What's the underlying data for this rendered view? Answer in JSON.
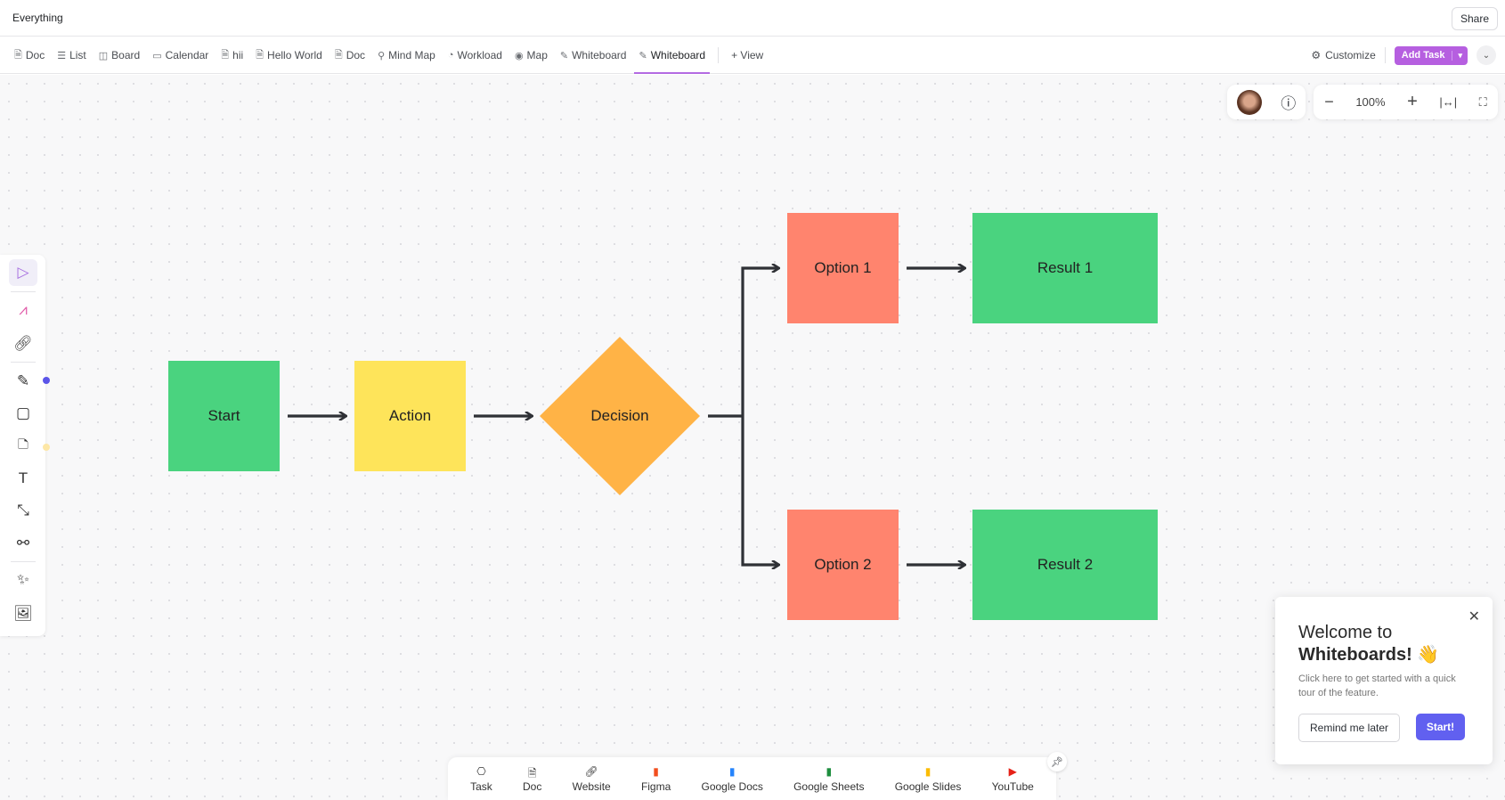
{
  "header": {
    "title": "Everything",
    "share_label": "Share"
  },
  "tabs": [
    {
      "label": "Doc",
      "icon": "doc-icon"
    },
    {
      "label": "List",
      "icon": "list-icon"
    },
    {
      "label": "Board",
      "icon": "board-icon"
    },
    {
      "label": "Calendar",
      "icon": "calendar-icon"
    },
    {
      "label": "hii",
      "icon": "doc-icon"
    },
    {
      "label": "Hello World",
      "icon": "doc-icon"
    },
    {
      "label": "Doc",
      "icon": "doc-icon"
    },
    {
      "label": "Mind Map",
      "icon": "mindmap-icon"
    },
    {
      "label": "Workload",
      "icon": "gauge-icon"
    },
    {
      "label": "Map",
      "icon": "map-pin-icon"
    },
    {
      "label": "Whiteboard",
      "icon": "whiteboard-icon"
    },
    {
      "label": "Whiteboard",
      "icon": "whiteboard-icon",
      "active": true
    }
  ],
  "add_view_label": "+ View",
  "customize_label": "Customize",
  "add_task_label": "Add Task",
  "zoom": {
    "level": "100%"
  },
  "flow": {
    "start": "Start",
    "action": "Action",
    "decision": "Decision",
    "option1": "Option 1",
    "option2": "Option 2",
    "result1": "Result 1",
    "result2": "Result 2",
    "colors": {
      "green": "#4ad37f",
      "yellow": "#fee45a",
      "orange": "#ffb346",
      "salmon": "#ff846e",
      "arrow": "#2f3136"
    }
  },
  "popup": {
    "title_line1": "Welcome to",
    "title_line2": "Whiteboards!",
    "emoji": "👋",
    "body": "Click here to get started with a quick tour of the feature.",
    "remind_label": "Remind me later",
    "start_label": "Start!",
    "accent": "#6160f0"
  },
  "bottom": [
    {
      "label": "Task"
    },
    {
      "label": "Doc"
    },
    {
      "label": "Website"
    },
    {
      "label": "Figma"
    },
    {
      "label": "Google Docs"
    },
    {
      "label": "Google Sheets"
    },
    {
      "label": "Google Slides"
    },
    {
      "label": "YouTube"
    }
  ]
}
